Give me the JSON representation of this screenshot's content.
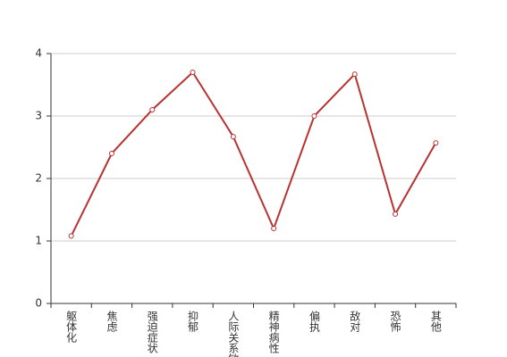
{
  "chart_data": {
    "type": "line",
    "categories": [
      "躯体化",
      "焦虑",
      "强迫症状",
      "抑郁",
      "人际关系敏感",
      "精神病性",
      "偏执",
      "敌对",
      "恐怖",
      "其他"
    ],
    "values": [
      1.08,
      2.4,
      3.1,
      3.7,
      2.67,
      1.2,
      3.0,
      3.67,
      1.43,
      2.57
    ],
    "color": "#b83232",
    "ylim": [
      0,
      4
    ],
    "yticks": [
      0,
      1,
      2,
      3,
      4
    ],
    "grid": true
  }
}
